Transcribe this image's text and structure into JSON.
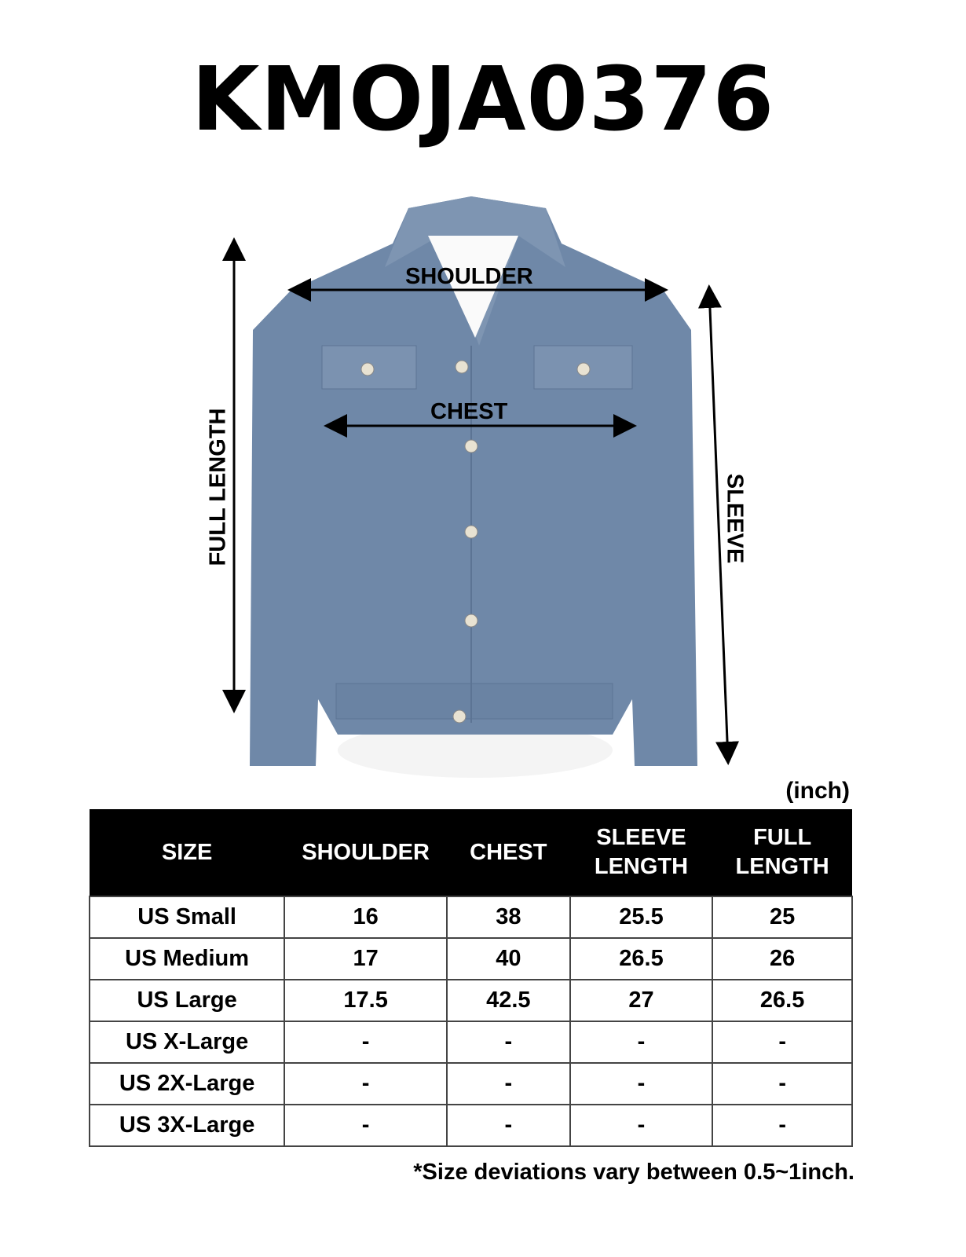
{
  "title": "KMOJA0376",
  "diagram_labels": {
    "shoulder": "SHOULDER",
    "chest": "CHEST",
    "full_length": "FULL LENGTH",
    "sleeve": "SLEEVE"
  },
  "unit": "(inch)",
  "table": {
    "headers": [
      "SIZE",
      "SHOULDER",
      "CHEST",
      [
        "SLEEVE",
        "LENGTH"
      ],
      [
        "FULL",
        "LENGTH"
      ]
    ],
    "rows": [
      [
        "US Small",
        "16",
        "38",
        "25.5",
        "25"
      ],
      [
        "US Medium",
        "17",
        "40",
        "26.5",
        "26"
      ],
      [
        "US Large",
        "17.5",
        "42.5",
        "27",
        "26.5"
      ],
      [
        "US X-Large",
        "-",
        "-",
        "-",
        "-"
      ],
      [
        "US 2X-Large",
        "-",
        "-",
        "-",
        "-"
      ],
      [
        "US 3X-Large",
        "-",
        "-",
        "-",
        "-"
      ]
    ]
  },
  "note": "*Size deviations vary between 0.5~1inch.",
  "colors": {
    "denim": "#6f88a8",
    "header_bg": "#000000"
  }
}
